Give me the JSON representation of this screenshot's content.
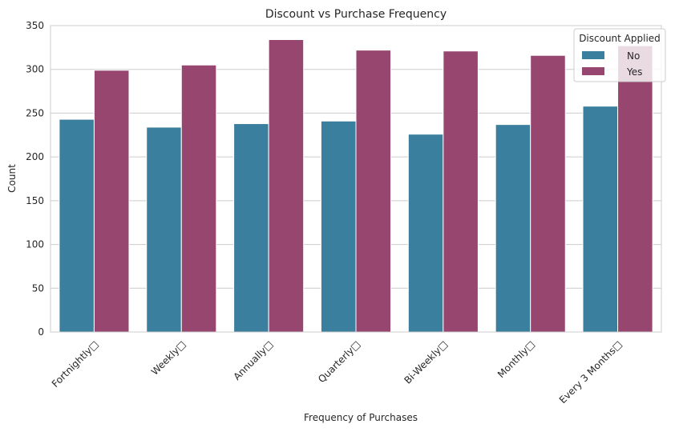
{
  "chart_data": {
    "type": "bar",
    "title": "Discount vs Purchase Frequency",
    "xlabel": "Frequency of Purchases",
    "ylabel": "Count",
    "ylim": [
      0,
      350
    ],
    "yticks": [
      0,
      50,
      100,
      150,
      200,
      250,
      300,
      350
    ],
    "grid": "y",
    "categories": [
      "Fortnightly□",
      "Weekly□",
      "Annually□",
      "Quarterly□",
      "Bi-Weekly□",
      "Monthly□",
      "Every 3 Months□"
    ],
    "legend": {
      "title": "Discount Applied",
      "placement": "top-right"
    },
    "series": [
      {
        "name": "No",
        "color": "#3a7f9e",
        "values": [
          243,
          234,
          238,
          241,
          226,
          237,
          258
        ]
      },
      {
        "name": "Yes",
        "color": "#96466f",
        "values": [
          299,
          305,
          334,
          322,
          321,
          316,
          327
        ]
      }
    ]
  }
}
